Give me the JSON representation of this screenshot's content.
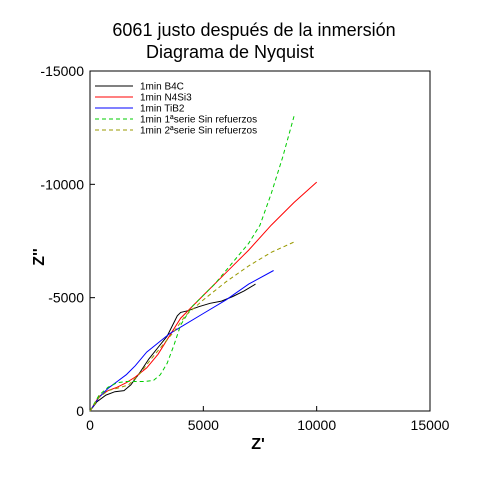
{
  "chart_data": {
    "type": "line",
    "title": "6061 justo después de la inmersión",
    "subtitle": "Diagrama de Nyquist",
    "xlabel": "Z'",
    "ylabel": "Z''",
    "xlim": [
      0,
      15000
    ],
    "ylim": [
      0,
      -15000
    ],
    "xticks": [
      "0",
      "5000",
      "10000",
      "15000"
    ],
    "yticks": [
      "0",
      "-5000",
      "-10000",
      "-15000"
    ],
    "legend_position": "top-left",
    "series": [
      {
        "name": "1min B4C",
        "color": "#000000",
        "dash": "solid",
        "x": [
          0,
          300,
          700,
          1100,
          1500,
          1800,
          2200,
          2600,
          3000,
          3400,
          3700,
          3850,
          4000,
          4300,
          4800,
          5300,
          5800,
          6300,
          6800,
          7300
        ],
        "y": [
          0,
          -400,
          -700,
          -850,
          -900,
          -1150,
          -1700,
          -2300,
          -2800,
          -3300,
          -3900,
          -4200,
          -4350,
          -4420,
          -4600,
          -4750,
          -4850,
          -5050,
          -5300,
          -5600
        ]
      },
      {
        "name": "1min N4Si3",
        "color": "#ff0000",
        "dash": "solid",
        "x": [
          0,
          400,
          800,
          1200,
          1600,
          2000,
          2500,
          3000,
          3500,
          4000,
          5000,
          6000,
          7000,
          8000,
          9000,
          10000
        ],
        "y": [
          0,
          -650,
          -900,
          -1050,
          -1250,
          -1500,
          -1900,
          -2500,
          -3300,
          -4100,
          -5100,
          -6100,
          -7100,
          -8200,
          -9200,
          -10100
        ]
      },
      {
        "name": "1min TiB2",
        "color": "#0000ff",
        "dash": "solid",
        "x": [
          0,
          400,
          800,
          1200,
          1600,
          2000,
          2500,
          3000,
          3500,
          4000,
          5000,
          6000,
          7000,
          8100
        ],
        "y": [
          0,
          -600,
          -1000,
          -1300,
          -1600,
          -2000,
          -2600,
          -3000,
          -3400,
          -3700,
          -4300,
          -4900,
          -5600,
          -6200
        ]
      },
      {
        "name": "1min 1ªserie Sin refuerzos",
        "color": "#00cc00",
        "dash": "dashed",
        "x": [
          0,
          400,
          800,
          1200,
          1600,
          2000,
          2400,
          2800,
          3100,
          3400,
          3700,
          4000,
          4500,
          5000,
          5500,
          6000,
          6500,
          7000,
          7500,
          8000,
          8500,
          9000
        ],
        "y": [
          0,
          -700,
          -1050,
          -1250,
          -1300,
          -1300,
          -1300,
          -1350,
          -1600,
          -2100,
          -2900,
          -3800,
          -4600,
          -5100,
          -5600,
          -6200,
          -6800,
          -7400,
          -8200,
          -9600,
          -11200,
          -13000
        ]
      },
      {
        "name": "1min 2ªserie Sin refuerzos",
        "color": "#999900",
        "dash": "dashed",
        "x": [
          0,
          400,
          800,
          1200,
          1700,
          2200,
          2700,
          3200,
          3700,
          4200,
          5000,
          6000,
          7000,
          8000,
          9100
        ],
        "y": [
          0,
          -600,
          -900,
          -1000,
          -1150,
          -1650,
          -2300,
          -2900,
          -3500,
          -4200,
          -4900,
          -5700,
          -6400,
          -7000,
          -7500
        ]
      }
    ]
  }
}
